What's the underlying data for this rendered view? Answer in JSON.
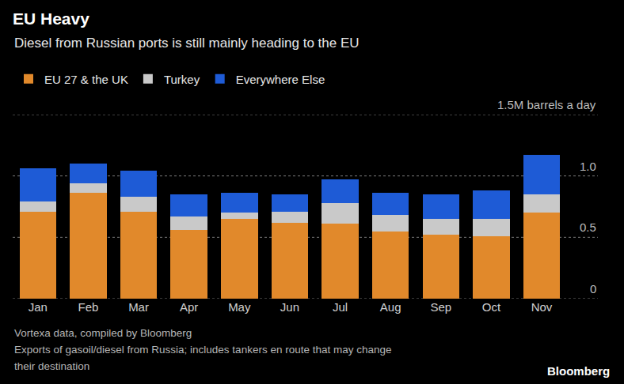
{
  "chart_data": {
    "type": "bar",
    "title": "EU Heavy",
    "subtitle": "Diesel from Russian ports is still mainly heading to the EU",
    "categories": [
      "Jan",
      "Feb",
      "Mar",
      "Apr",
      "May",
      "Jun",
      "Jul",
      "Aug",
      "Sep",
      "Oct",
      "Nov"
    ],
    "series": [
      {
        "name": "EU 27 & the UK",
        "color": "#e1892b",
        "values": [
          0.71,
          0.86,
          0.71,
          0.56,
          0.65,
          0.62,
          0.61,
          0.55,
          0.52,
          0.51,
          0.7
        ]
      },
      {
        "name": "Turkey",
        "color": "#c9c9c9",
        "values": [
          0.08,
          0.08,
          0.12,
          0.11,
          0.05,
          0.09,
          0.17,
          0.13,
          0.13,
          0.14,
          0.15
        ]
      },
      {
        "name": "Everywhere Else",
        "color": "#1e5bd6",
        "values": [
          0.27,
          0.16,
          0.21,
          0.18,
          0.16,
          0.14,
          0.19,
          0.18,
          0.2,
          0.23,
          0.32
        ]
      }
    ],
    "stacked": true,
    "ylim": [
      0,
      1.5
    ],
    "yticks": [
      0,
      0.5,
      {
        "value": 1.0,
        "label": "1.0"
      },
      {
        "value": 1.5,
        "label": "1.5M barrels a day"
      }
    ],
    "grid": true,
    "legend": "top-left",
    "footnote": [
      "Vortexa data, compiled by Bloomberg",
      "Exports of gasoil/diesel from Russia; includes tankers en route that may change",
      "their destination"
    ],
    "source": "Bloomberg"
  }
}
